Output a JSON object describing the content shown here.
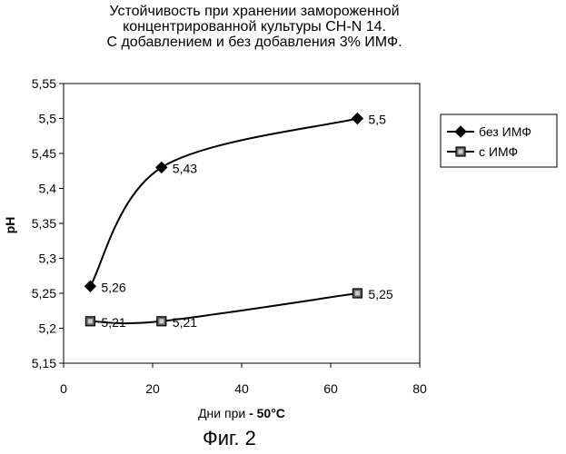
{
  "chart_data": {
    "type": "line",
    "title_lines": [
      "Устойчивость при хранении замороженной",
      "концентрированной культуры CH-N 14.",
      "С добавлением и без добавления 3% ИМФ."
    ],
    "xlabel_prefix": "Дни при ",
    "xlabel_suffix": "- 50°C",
    "ylabel": "pH",
    "xlim": [
      0,
      80
    ],
    "ylim": [
      5.15,
      5.55
    ],
    "x_ticks": [
      0,
      20,
      40,
      60,
      80
    ],
    "y_ticks": [
      "5,15",
      "5,2",
      "5,25",
      "5,3",
      "5,35",
      "5,4",
      "5,45",
      "5,5",
      "5,55"
    ],
    "y_tick_values": [
      5.15,
      5.2,
      5.25,
      5.3,
      5.35,
      5.4,
      5.45,
      5.5,
      5.55
    ],
    "grid": false,
    "legend_position": "right",
    "series": [
      {
        "name": "без ИМФ",
        "marker": "diamond",
        "color": "#000000",
        "x": [
          6,
          22,
          66
        ],
        "y": [
          5.26,
          5.43,
          5.5
        ],
        "labels": [
          "5,26",
          "5,43",
          "5,5"
        ]
      },
      {
        "name": "с ИМФ",
        "marker": "square",
        "color": "#000000",
        "x": [
          6,
          22,
          66
        ],
        "y": [
          5.21,
          5.21,
          5.25
        ],
        "labels": [
          "5,21",
          "5,21",
          "5,25"
        ]
      }
    ]
  },
  "caption": "Фиг. 2"
}
